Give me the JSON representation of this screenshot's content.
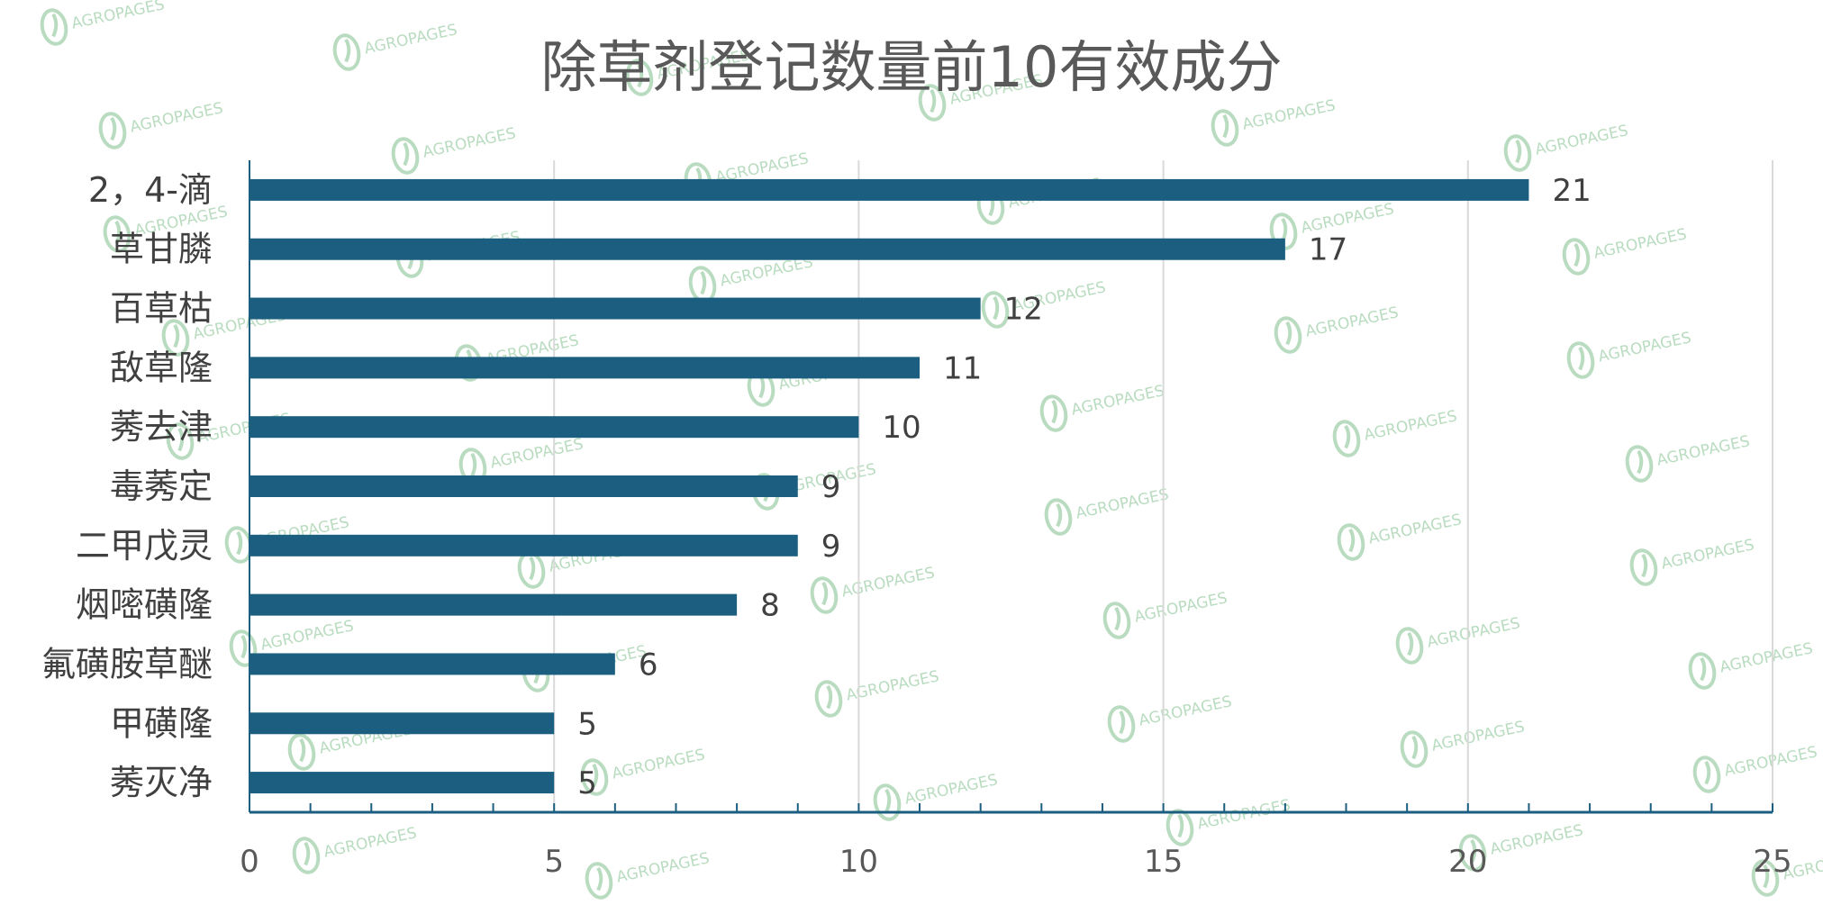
{
  "chart_data": {
    "type": "bar",
    "orientation": "horizontal",
    "title": "除草剂登记数量前10有效成分",
    "categories": [
      "2，4-滴",
      "草甘膦",
      "百草枯",
      "敌草隆",
      "莠去津",
      "毒莠定",
      "二甲戊灵",
      "烟嘧磺隆",
      "氟磺胺草醚",
      "甲磺隆",
      "莠灭净"
    ],
    "values": [
      21,
      17,
      12,
      11,
      10,
      9,
      9,
      8,
      6,
      5,
      5
    ],
    "xlim": [
      0,
      25
    ],
    "xticks": [
      0,
      5,
      10,
      15,
      20,
      25
    ],
    "minor_tick_step": 1,
    "grid": true,
    "legend": "none",
    "xlabel": "",
    "ylabel": "",
    "bar_color": "#1b5e80",
    "grid_color": "#d9d9d9",
    "axis_color": "#1b5e80"
  },
  "watermark": {
    "text": "AGROPAGES",
    "color": "#b9dcc0"
  }
}
